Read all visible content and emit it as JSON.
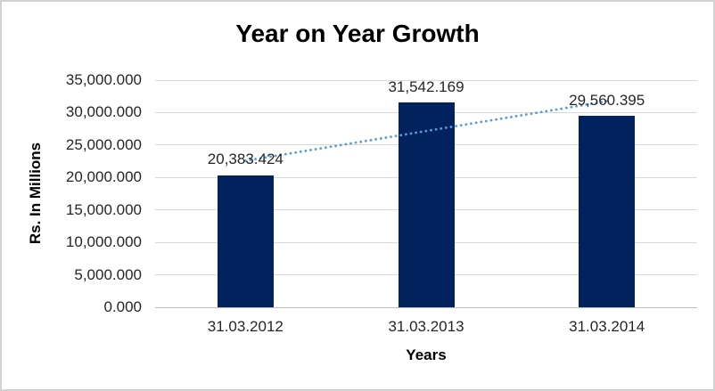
{
  "chart_data": {
    "type": "bar",
    "title": "Year on Year Growth",
    "xlabel": "Years",
    "ylabel": "Rs. In Millions",
    "categories": [
      "31.03.2012",
      "31.03.2013",
      "31.03.2014"
    ],
    "values": [
      20383.424,
      31542.169,
      29560.395
    ],
    "data_labels": [
      "20,383.424",
      "31,542.169",
      "29,560.395"
    ],
    "ylim": [
      0,
      35000
    ],
    "y_tick_step": 5000,
    "y_ticks": [
      {
        "value": 0,
        "label": "0.000"
      },
      {
        "value": 5000,
        "label": "5,000.000"
      },
      {
        "value": 10000,
        "label": "10,000.000"
      },
      {
        "value": 15000,
        "label": "15,000.000"
      },
      {
        "value": 20000,
        "label": "20,000.000"
      },
      {
        "value": 25000,
        "label": "25,000.000"
      },
      {
        "value": 30000,
        "label": "30,000.000"
      },
      {
        "value": 35000,
        "label": "35,000.000"
      }
    ],
    "grid": true,
    "legend": "none",
    "colors": {
      "bar": "#02225E",
      "trendline": "#5B9BD5",
      "gridline": "#D9D9D9",
      "axis_line": "#BFBFBF",
      "text": "#262626",
      "title_text": "#000000"
    },
    "trendline": {
      "type": "linear",
      "style": "dotted",
      "start_value": 22573.5,
      "end_value": 31750.5
    }
  }
}
